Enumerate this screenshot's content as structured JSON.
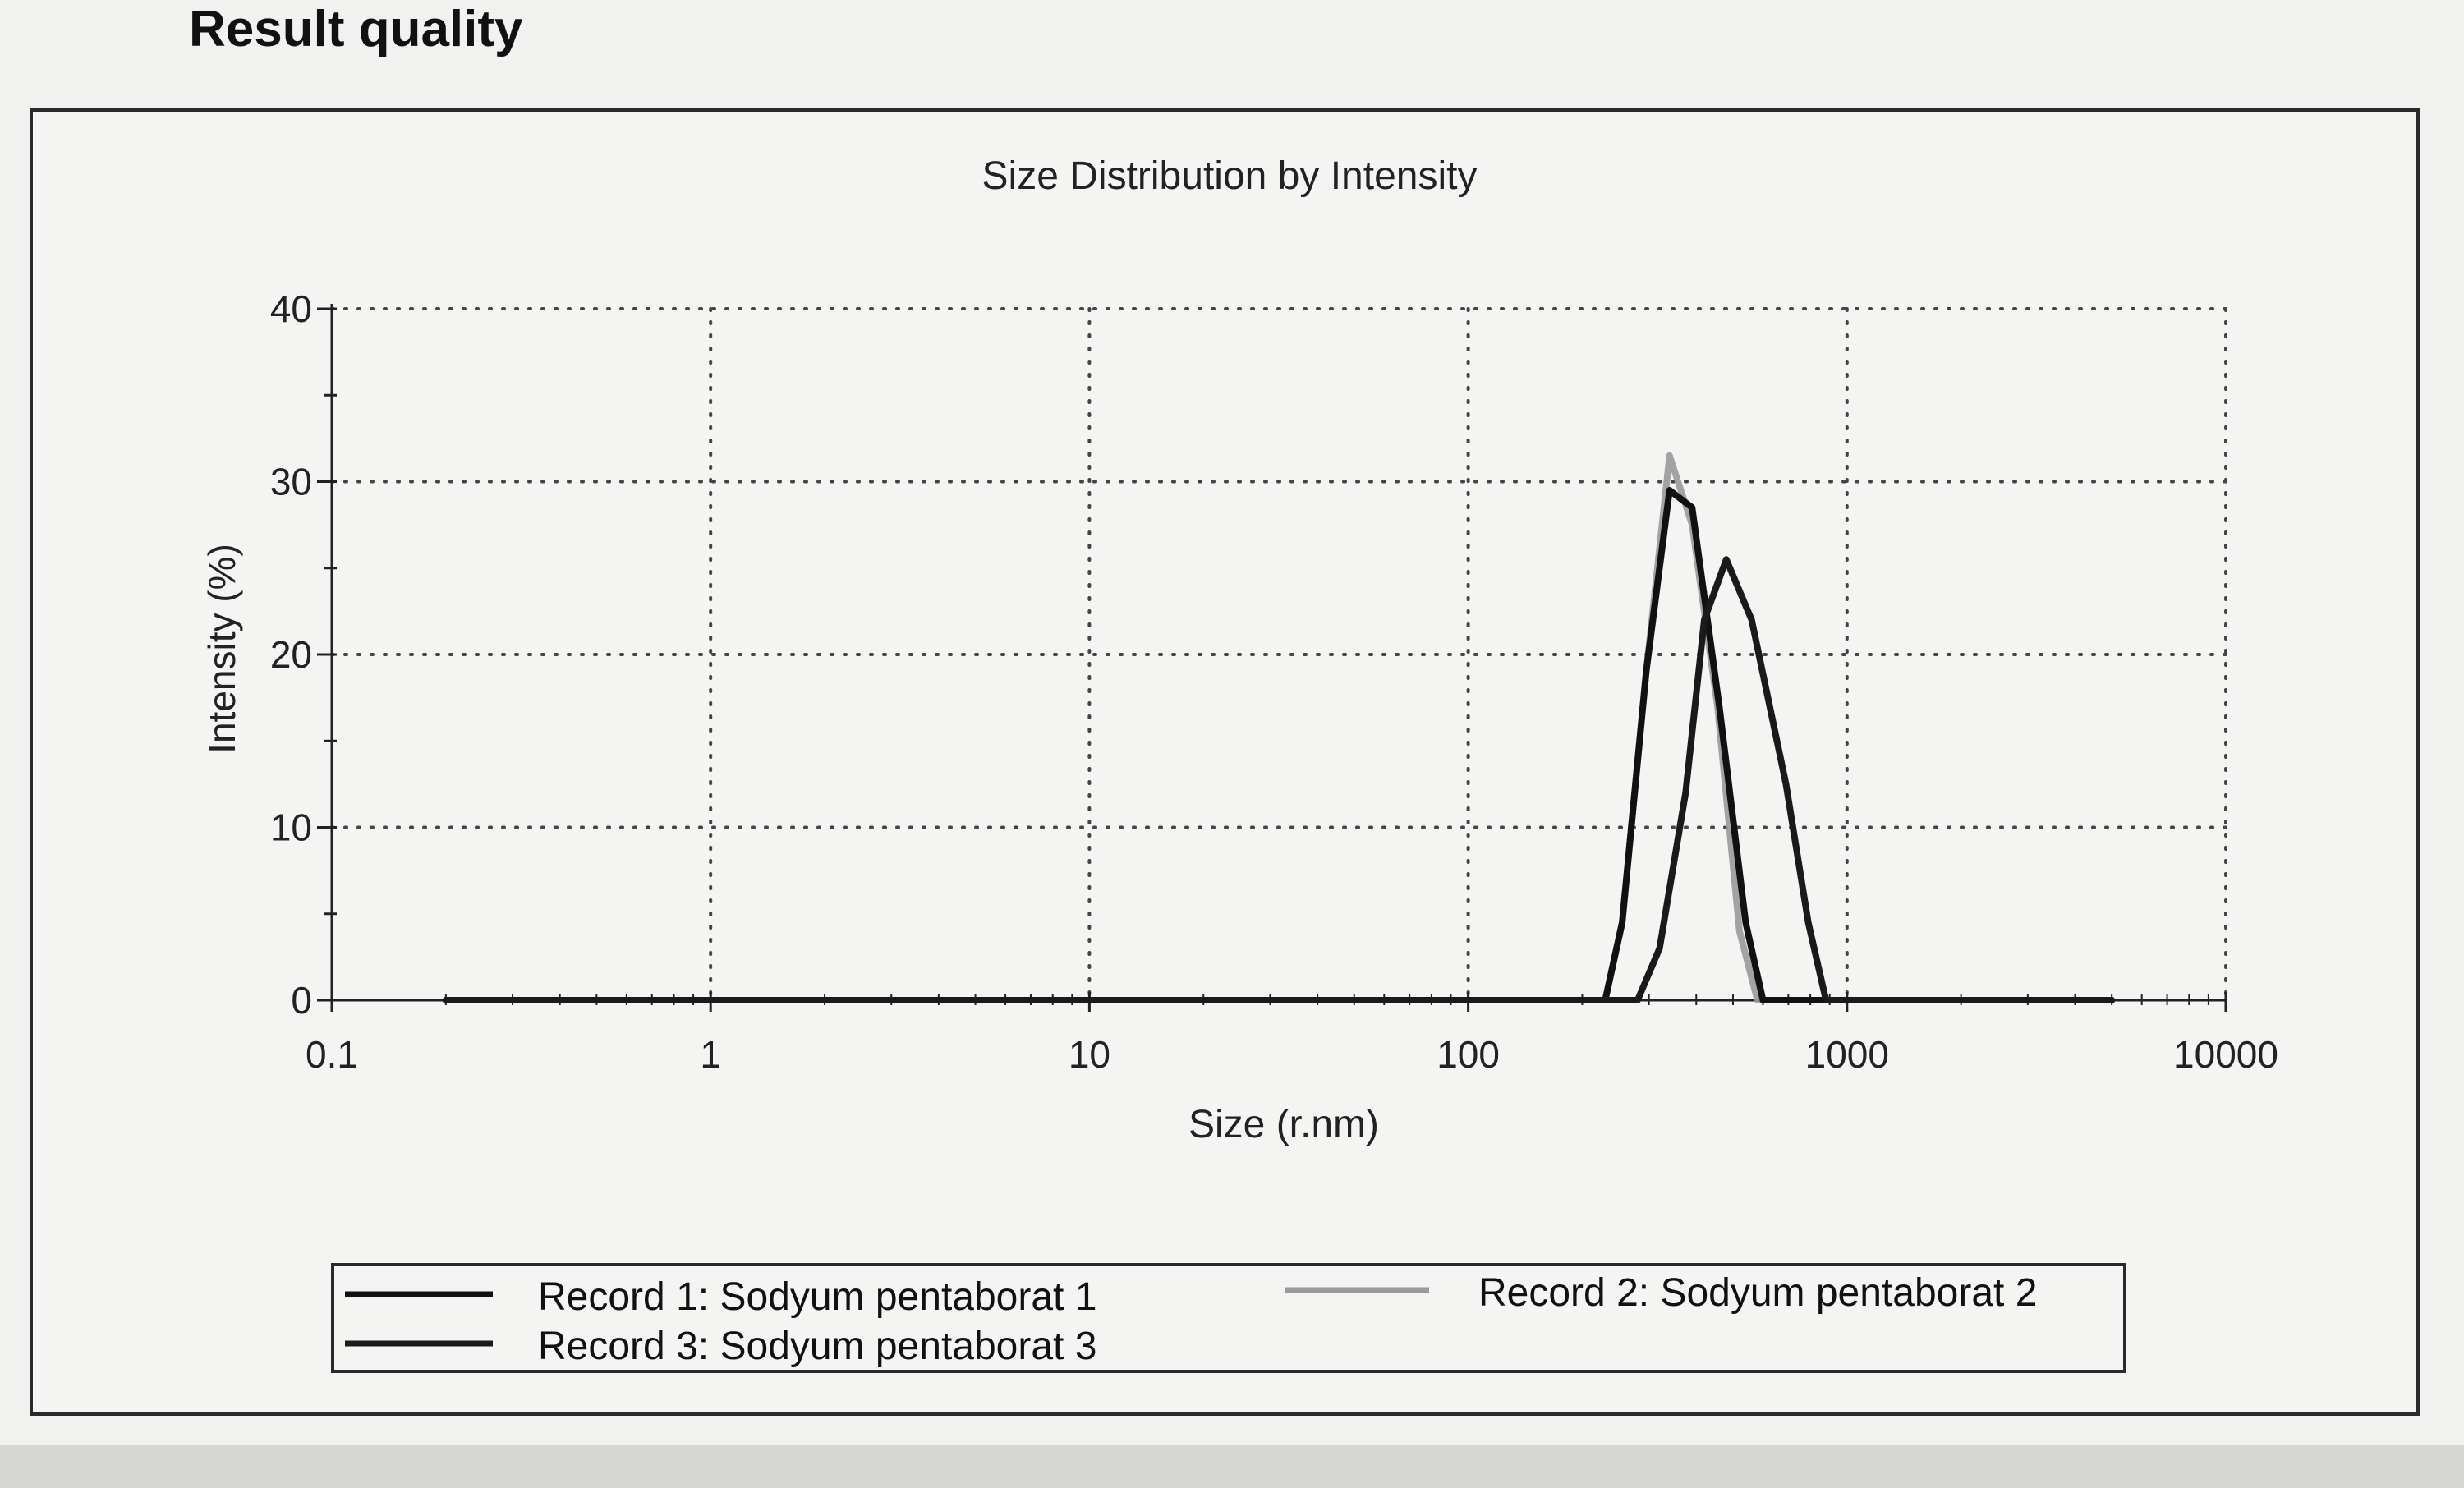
{
  "page": {
    "section_title": "Result quality"
  },
  "chart_data": {
    "type": "line",
    "title": "Size Distribution by Intensity",
    "xlabel": "Size (r.nm)",
    "ylabel": "Intensity (%)",
    "x_scale": "log",
    "xlim": [
      0.1,
      10000
    ],
    "ylim": [
      0,
      40
    ],
    "x_ticks": [
      "0.1",
      "1",
      "10",
      "100",
      "1000",
      "10000"
    ],
    "y_ticks": [
      "0",
      "10",
      "20",
      "30",
      "40"
    ],
    "grid": "dotted",
    "legend_position": "bottom",
    "series": [
      {
        "name": "Record 1: Sodyum pentaborat 1",
        "color": "#111111",
        "points": [
          [
            0.2,
            0
          ],
          [
            230,
            0
          ],
          [
            255,
            4.5
          ],
          [
            295,
            19
          ],
          [
            340,
            29.5
          ],
          [
            390,
            28.5
          ],
          [
            460,
            17
          ],
          [
            540,
            4.5
          ],
          [
            600,
            0
          ],
          [
            5000,
            0
          ]
        ]
      },
      {
        "name": "Record 2: Sodyum pentaborat 2",
        "color": "#9a9a9a",
        "points": [
          [
            0.2,
            0
          ],
          [
            230,
            0
          ],
          [
            255,
            4.5
          ],
          [
            295,
            19
          ],
          [
            340,
            31.5
          ],
          [
            390,
            27.5
          ],
          [
            455,
            17
          ],
          [
            520,
            4
          ],
          [
            580,
            0
          ],
          [
            5000,
            0
          ]
        ]
      },
      {
        "name": "Record 3: Sodyum pentaborat 3",
        "color": "#1a1a1a",
        "points": [
          [
            0.2,
            0
          ],
          [
            280,
            0
          ],
          [
            320,
            3
          ],
          [
            375,
            12
          ],
          [
            420,
            22
          ],
          [
            480,
            25.5
          ],
          [
            560,
            22
          ],
          [
            690,
            12.5
          ],
          [
            790,
            4.5
          ],
          [
            880,
            0
          ],
          [
            5000,
            0
          ]
        ]
      }
    ]
  }
}
